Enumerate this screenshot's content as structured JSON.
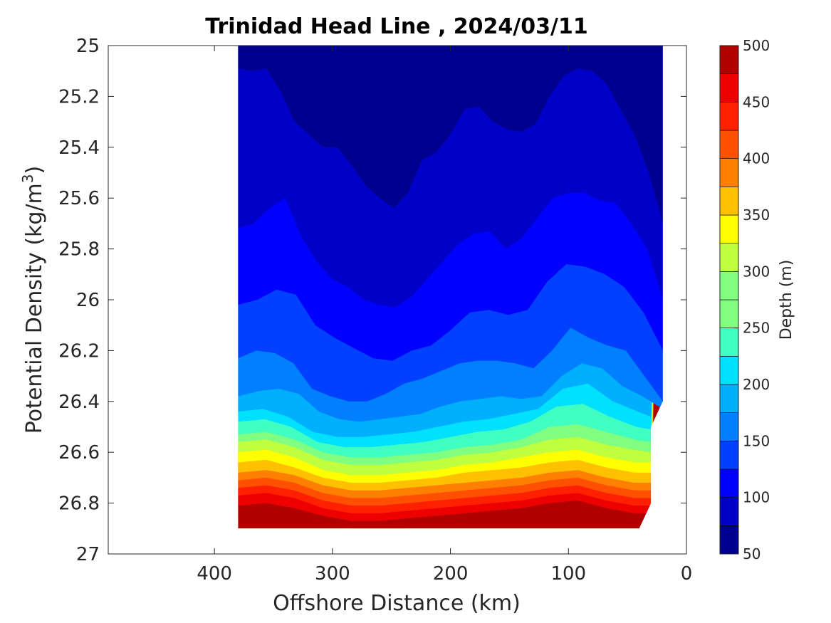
{
  "chart_data": {
    "type": "contour",
    "title": "Trinidad Head Line , 2024/03/11",
    "xlabel": "Offshore Distance (km)",
    "ylabel": "Potential Density (kg/m3)",
    "ylabel_main": "Potential Density (kg/m",
    "ylabel_sup": "3",
    "ylabel_close": ")",
    "xlim": [
      490,
      0
    ],
    "ylim": [
      25,
      27
    ],
    "x_reversed": true,
    "y_reversed": true,
    "x_ticks": [
      400,
      300,
      200,
      100,
      0
    ],
    "y_ticks": [
      25,
      25.2,
      25.4,
      25.6,
      25.8,
      26,
      26.2,
      26.4,
      26.6,
      26.8,
      27
    ],
    "y_tick_labels": [
      "25",
      "25.2",
      "25.4",
      "25.6",
      "25.8",
      "26",
      "26.2",
      "26.4",
      "26.6",
      "26.8",
      "27"
    ],
    "grid": false,
    "colorbar": {
      "label": "Depth (m)",
      "range": [
        50,
        500
      ],
      "ticks": [
        50,
        100,
        150,
        200,
        250,
        300,
        350,
        400,
        450,
        500
      ],
      "level_step": 25,
      "colormap": "jet",
      "colors": [
        "#00008f",
        "#0000c8",
        "#0000ff",
        "#0040ff",
        "#0080ff",
        "#00b0ff",
        "#00e0ff",
        "#40ffc0",
        "#80ff80",
        "#c0ff40",
        "#ffff00",
        "#ffc000",
        "#ff8000",
        "#ff5000",
        "#ff2000",
        "#ee0000",
        "#b00000"
      ]
    },
    "stations_x": [
      380,
      370,
      360,
      350,
      340,
      330,
      320,
      310,
      300,
      290,
      280,
      270,
      260,
      250,
      240,
      230,
      220,
      210,
      200,
      190,
      180,
      170,
      160,
      150,
      140,
      130,
      120,
      110,
      100,
      90,
      80,
      70,
      60,
      50,
      40,
      30,
      20
    ],
    "bottom_boundary": {
      "x": [
        380,
        30,
        30,
        40
      ],
      "y": [
        26.9,
        26.9,
        26.8,
        26.9
      ]
    },
    "isopycnal_depth_contours": [
      {
        "depth": 75,
        "sigma": [
          25.09,
          25.1,
          25.09,
          25.18,
          25.3,
          25.35,
          25.4,
          25.4,
          25.47,
          25.55,
          25.6,
          25.64,
          25.58,
          25.45,
          25.42,
          25.35,
          25.25,
          25.24,
          25.3,
          25.33,
          25.34,
          25.31,
          25.2,
          25.12,
          25.09,
          25.1,
          25.15,
          25.25,
          25.35,
          25.5,
          25.7
        ]
      },
      {
        "depth": 100,
        "sigma": [
          25.72,
          25.7,
          25.64,
          25.6,
          25.75,
          25.85,
          25.92,
          25.95,
          26.0,
          26.02,
          26.03,
          25.99,
          25.92,
          25.85,
          25.78,
          25.74,
          25.73,
          25.8,
          25.76,
          25.68,
          25.6,
          25.58,
          25.58,
          25.61,
          25.62,
          25.7,
          25.8,
          26.0
        ]
      },
      {
        "depth": 125,
        "sigma": [
          26.02,
          26.0,
          25.96,
          25.98,
          26.1,
          26.15,
          26.19,
          26.23,
          26.24,
          26.2,
          26.18,
          26.12,
          26.05,
          26.04,
          26.06,
          26.04,
          25.93,
          25.86,
          25.87,
          25.9,
          25.95,
          26.05,
          26.2
        ]
      },
      {
        "depth": 150,
        "sigma": [
          26.23,
          26.2,
          26.21,
          26.25,
          26.35,
          26.38,
          26.4,
          26.4,
          26.37,
          26.33,
          26.31,
          26.28,
          26.25,
          26.24,
          26.24,
          26.25,
          26.27,
          26.2,
          26.11,
          26.15,
          26.18,
          26.2,
          26.3,
          26.4
        ]
      },
      {
        "depth": 175,
        "sigma": [
          26.38,
          26.36,
          26.35,
          26.37,
          26.44,
          26.47,
          26.48,
          26.47,
          26.46,
          26.45,
          26.42,
          26.4,
          26.39,
          26.38,
          26.39,
          26.38,
          26.3,
          26.25,
          26.27,
          26.34,
          26.38,
          26.43
        ]
      },
      {
        "depth": 200,
        "sigma": [
          26.44,
          26.43,
          26.46,
          26.52,
          26.54,
          26.54,
          26.53,
          26.52,
          26.5,
          26.48,
          26.47,
          26.45,
          26.43,
          26.35,
          26.33,
          26.4,
          26.44,
          26.46
        ]
      },
      {
        "depth": 225,
        "sigma": [
          26.48,
          26.47,
          26.5,
          26.56,
          26.58,
          26.58,
          26.57,
          26.56,
          26.54,
          26.52,
          26.51,
          26.48,
          26.42,
          26.41,
          26.46,
          26.5,
          26.51
        ]
      },
      {
        "depth": 250,
        "sigma": [
          26.53,
          26.52,
          26.55,
          26.6,
          26.62,
          26.62,
          26.61,
          26.6,
          26.58,
          26.57,
          26.55,
          26.5,
          26.49,
          26.52,
          26.55,
          26.56
        ]
      },
      {
        "depth": 275,
        "sigma": [
          26.56,
          26.55,
          26.58,
          26.63,
          26.65,
          26.65,
          26.64,
          26.63,
          26.61,
          26.6,
          26.58,
          26.55,
          26.54,
          26.57,
          26.59,
          26.6
        ]
      },
      {
        "depth": 300,
        "sigma": [
          26.6,
          26.59,
          26.62,
          26.67,
          26.69,
          26.69,
          26.68,
          26.67,
          26.65,
          26.64,
          26.62,
          26.6,
          26.59,
          26.62,
          26.64,
          26.64
        ]
      },
      {
        "depth": 325,
        "sigma": [
          26.64,
          26.63,
          26.66,
          26.7,
          26.72,
          26.72,
          26.71,
          26.7,
          26.68,
          26.67,
          26.66,
          26.64,
          26.63,
          26.66,
          26.68,
          26.68
        ]
      },
      {
        "depth": 350,
        "sigma": [
          26.68,
          26.67,
          26.69,
          26.73,
          26.75,
          26.75,
          26.74,
          26.73,
          26.72,
          26.71,
          26.7,
          26.68,
          26.67,
          26.7,
          26.72,
          26.72
        ]
      },
      {
        "depth": 375,
        "sigma": [
          26.71,
          26.7,
          26.72,
          26.76,
          26.78,
          26.78,
          26.77,
          26.76,
          26.75,
          26.74,
          26.73,
          26.71,
          26.7,
          26.73,
          26.75,
          26.75
        ]
      },
      {
        "depth": 400,
        "sigma": [
          26.74,
          26.73,
          26.75,
          26.79,
          26.81,
          26.81,
          26.8,
          26.79,
          26.78,
          26.77,
          26.76,
          26.74,
          26.73,
          26.76,
          26.78,
          26.78
        ]
      },
      {
        "depth": 425,
        "sigma": [
          26.77,
          26.76,
          26.78,
          26.82,
          26.84,
          26.84,
          26.83,
          26.82,
          26.81,
          26.8,
          26.79,
          26.77,
          26.76,
          26.79,
          26.81,
          26.81
        ]
      },
      {
        "depth": 450,
        "sigma": [
          26.81,
          26.8,
          26.82,
          26.85,
          26.87,
          26.87,
          26.86,
          26.85,
          26.84,
          26.83,
          26.82,
          26.8,
          26.79,
          26.82,
          26.84,
          26.84
        ]
      },
      {
        "depth": 475,
        "sigma": [
          26.86,
          26.85,
          26.87,
          26.89,
          26.9,
          26.9,
          26.9,
          26.89,
          26.88,
          26.87,
          26.86,
          26.85,
          26.84,
          26.86,
          26.87,
          26.88
        ]
      }
    ]
  }
}
